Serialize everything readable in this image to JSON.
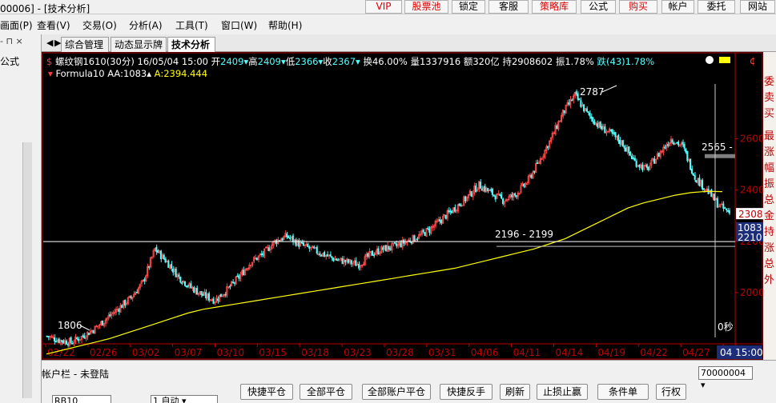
{
  "window": {
    "title": "00006] - [技术分析]"
  },
  "toolbar": [
    {
      "label": "VIP",
      "red": true
    },
    {
      "label": "股票池",
      "red": true
    },
    {
      "label": "锁定",
      "red": false
    },
    {
      "label": "客服",
      "red": false
    },
    {
      "label": "策略库",
      "red": true
    },
    {
      "label": "公式",
      "red": false
    },
    {
      "label": "购买",
      "red": true
    },
    {
      "label": "帐户",
      "red": false
    },
    {
      "label": "委托",
      "red": false
    },
    {
      "label": "网站",
      "red": false
    }
  ],
  "menu": [
    "画面(P)",
    "查看(V)",
    "交易(O)",
    "分析(A)",
    "工具(T)",
    "窗口(W)",
    "帮助(H)"
  ],
  "left_panel": {
    "header": "- ⊓ ×",
    "label": "公式"
  },
  "tabs": [
    "综合管理",
    "动态显示牌",
    "技术分析"
  ],
  "quote": {
    "symbol": "螺纹钢1610",
    "period": "(30分)",
    "datetime": "16/05/04 15:00",
    "open_label": "开",
    "open": "2409",
    "high_label": "高",
    "high": "2409",
    "low_label": "低",
    "low": "2366",
    "close_label": "收",
    "close": "2367",
    "turnover": "换46.00%",
    "volume": "量1337916",
    "amount": "额320亿",
    "oi": "持2908602",
    "amplitude": "振1.78%",
    "change": "跌(43)1.78%"
  },
  "formula": {
    "name": "Formula10",
    "aa": "AA:1083",
    "a": "A:2394.444"
  },
  "chart_annotations": {
    "high": "2787",
    "low": "1806",
    "mid_range": "2196 - 2199",
    "right_level": "2565 -",
    "countdown": "0秒",
    "last_price": "2308",
    "aa_tag": "1083",
    "a_tag": "2210"
  },
  "colors": {
    "up": "#ff4a4a",
    "down": "#54ffff",
    "ma": "#ffff00",
    "axis": "#c00000",
    "bg": "#000000"
  },
  "chart_data": {
    "type": "candlestick",
    "yticks": [
      2000,
      2200,
      2400,
      2600
    ],
    "ylim": [
      1800,
      2820
    ],
    "xticks": [
      "02/22",
      "02/26",
      "03/02",
      "03/07",
      "03/10",
      "03/15",
      "03/18",
      "03/23",
      "03/28",
      "03/31",
      "04/06",
      "04/11",
      "04/14",
      "04/19",
      "04/22",
      "04/27",
      "05"
    ],
    "current_time_label": "04 15:00",
    "close_path": [
      1830,
      1815,
      1806,
      1830,
      1860,
      1900,
      1940,
      1980,
      2040,
      2170,
      2120,
      2060,
      2020,
      1990,
      1970,
      2010,
      2060,
      2120,
      2150,
      2200,
      2220,
      2190,
      2170,
      2150,
      2130,
      2120,
      2110,
      2150,
      2170,
      2180,
      2200,
      2220,
      2250,
      2290,
      2330,
      2370,
      2420,
      2390,
      2360,
      2380,
      2430,
      2510,
      2600,
      2700,
      2770,
      2700,
      2650,
      2620,
      2580,
      2510,
      2480,
      2540,
      2600,
      2570,
      2450,
      2400,
      2340,
      2308
    ],
    "ma_path": [
      1760,
      1775,
      1790,
      1805,
      1820,
      1840,
      1860,
      1880,
      1900,
      1920,
      1935,
      1945,
      1955,
      1965,
      1975,
      1985,
      1995,
      2005,
      2015,
      2025,
      2035,
      2045,
      2055,
      2065,
      2075,
      2085,
      2095,
      2110,
      2125,
      2140,
      2155,
      2170,
      2190,
      2210,
      2240,
      2270,
      2300,
      2330,
      2350,
      2365,
      2380,
      2390,
      2395,
      2394
    ]
  }
}
